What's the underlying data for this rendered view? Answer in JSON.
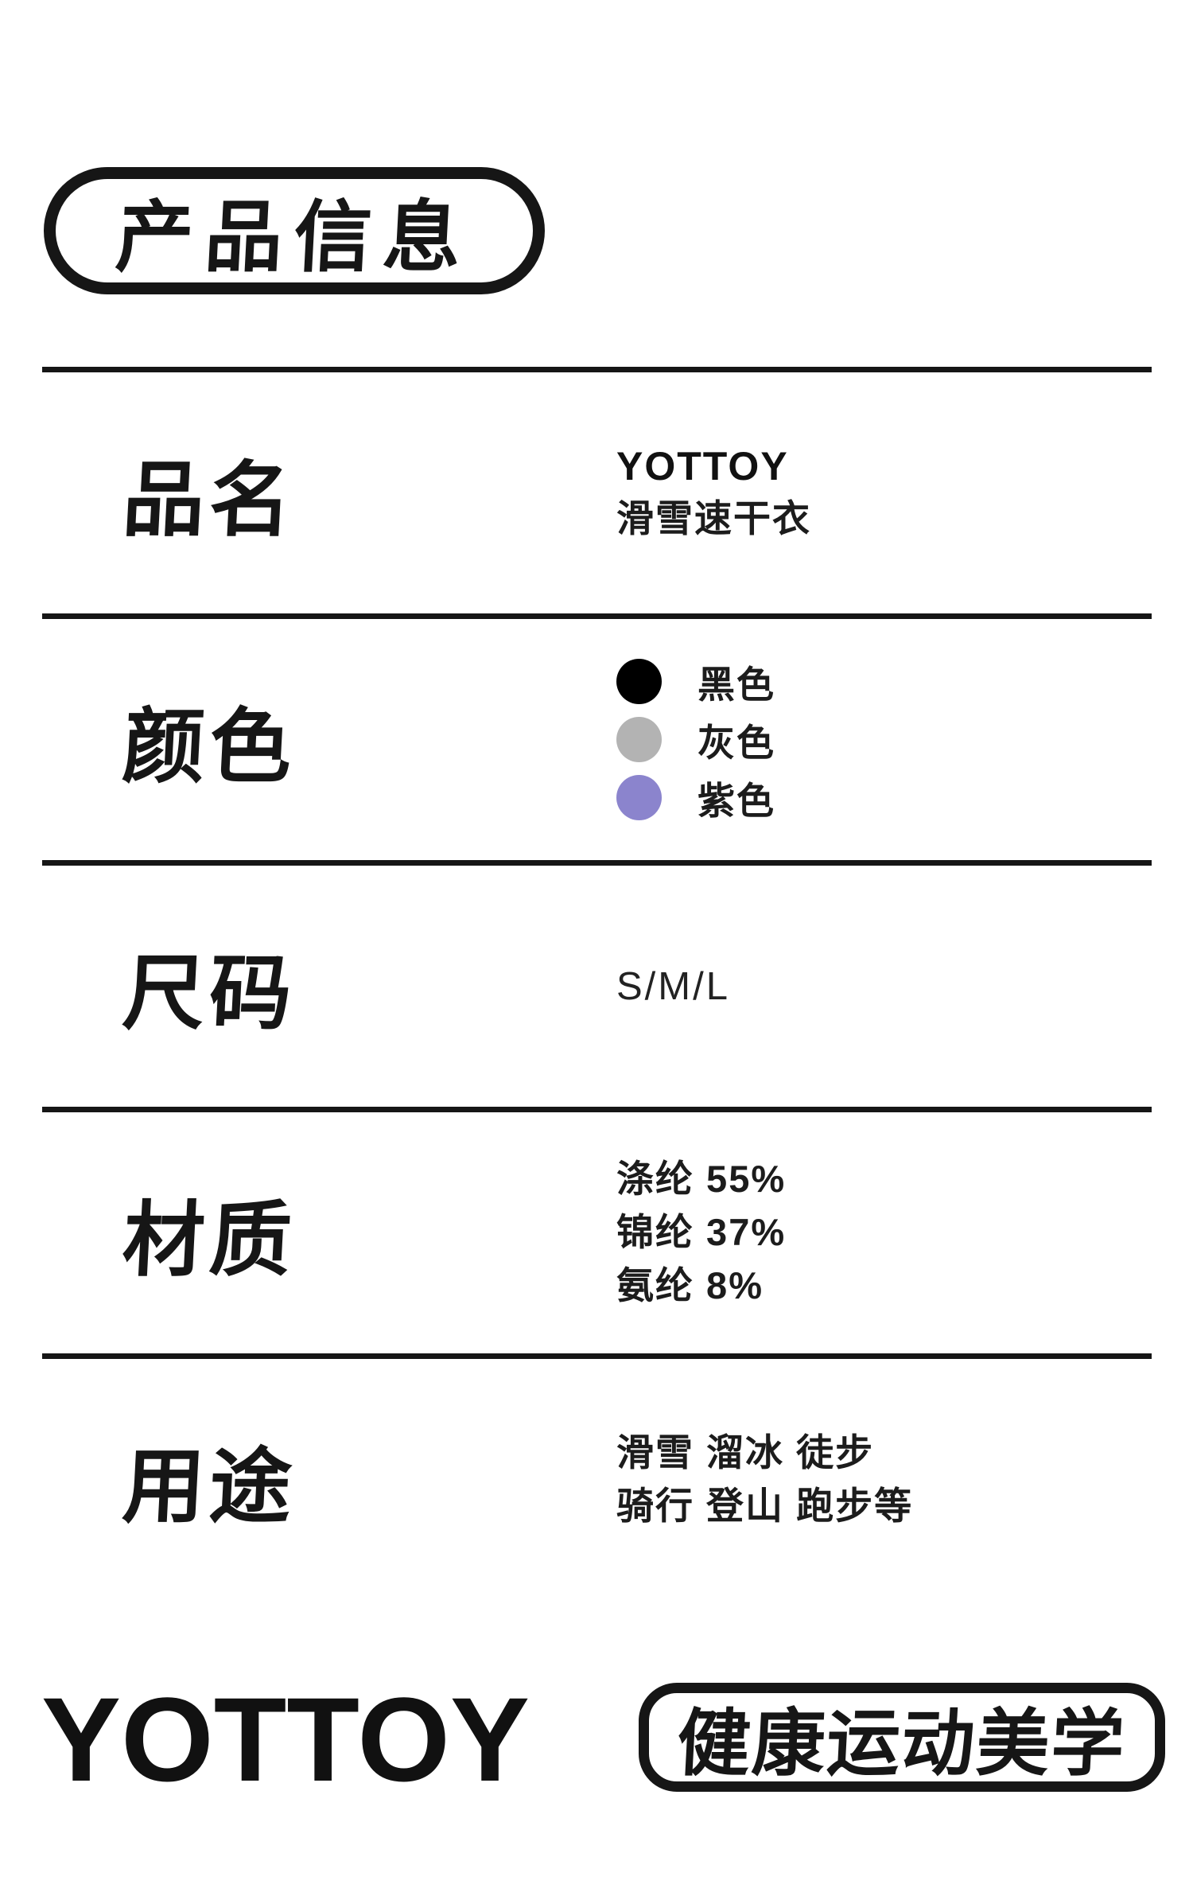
{
  "title": "产品信息",
  "rows": [
    {
      "label": "品名",
      "brand": "YOTTOY",
      "product": "滑雪速干衣"
    },
    {
      "label": "颜色",
      "colors": [
        {
          "name": "黑色",
          "hex": "#000000"
        },
        {
          "name": "灰色",
          "hex": "#b3b3b3"
        },
        {
          "name": "紫色",
          "hex": "#8b84cd"
        }
      ]
    },
    {
      "label": "尺码",
      "value": "S/M/L"
    },
    {
      "label": "材质",
      "lines": [
        "涤纶 55%",
        "锦纶 37%",
        "氨纶 8%"
      ]
    },
    {
      "label": "用途",
      "lines": [
        "滑雪 溜冰 徒步",
        "骑行 登山 跑步等"
      ]
    }
  ],
  "footer": {
    "logo": "YOTTOY",
    "slogan": "健康运动美学"
  }
}
